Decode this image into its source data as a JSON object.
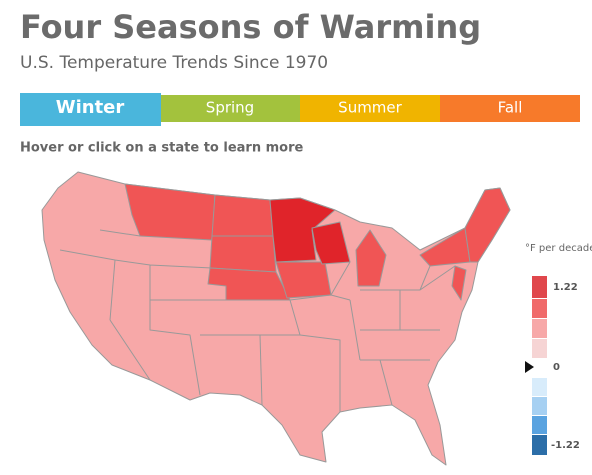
{
  "header": {
    "title": "Four Seasons of Warming",
    "subtitle": "U.S. Temperature Trends Since 1970"
  },
  "tabs": [
    "Winter",
    "Spring",
    "Summer",
    "Fall"
  ],
  "instruction": "Hover or click on a state to learn more",
  "legend": {
    "title": "°F per decade",
    "labels": [
      "1.22",
      "0",
      "-1.22"
    ]
  }
}
